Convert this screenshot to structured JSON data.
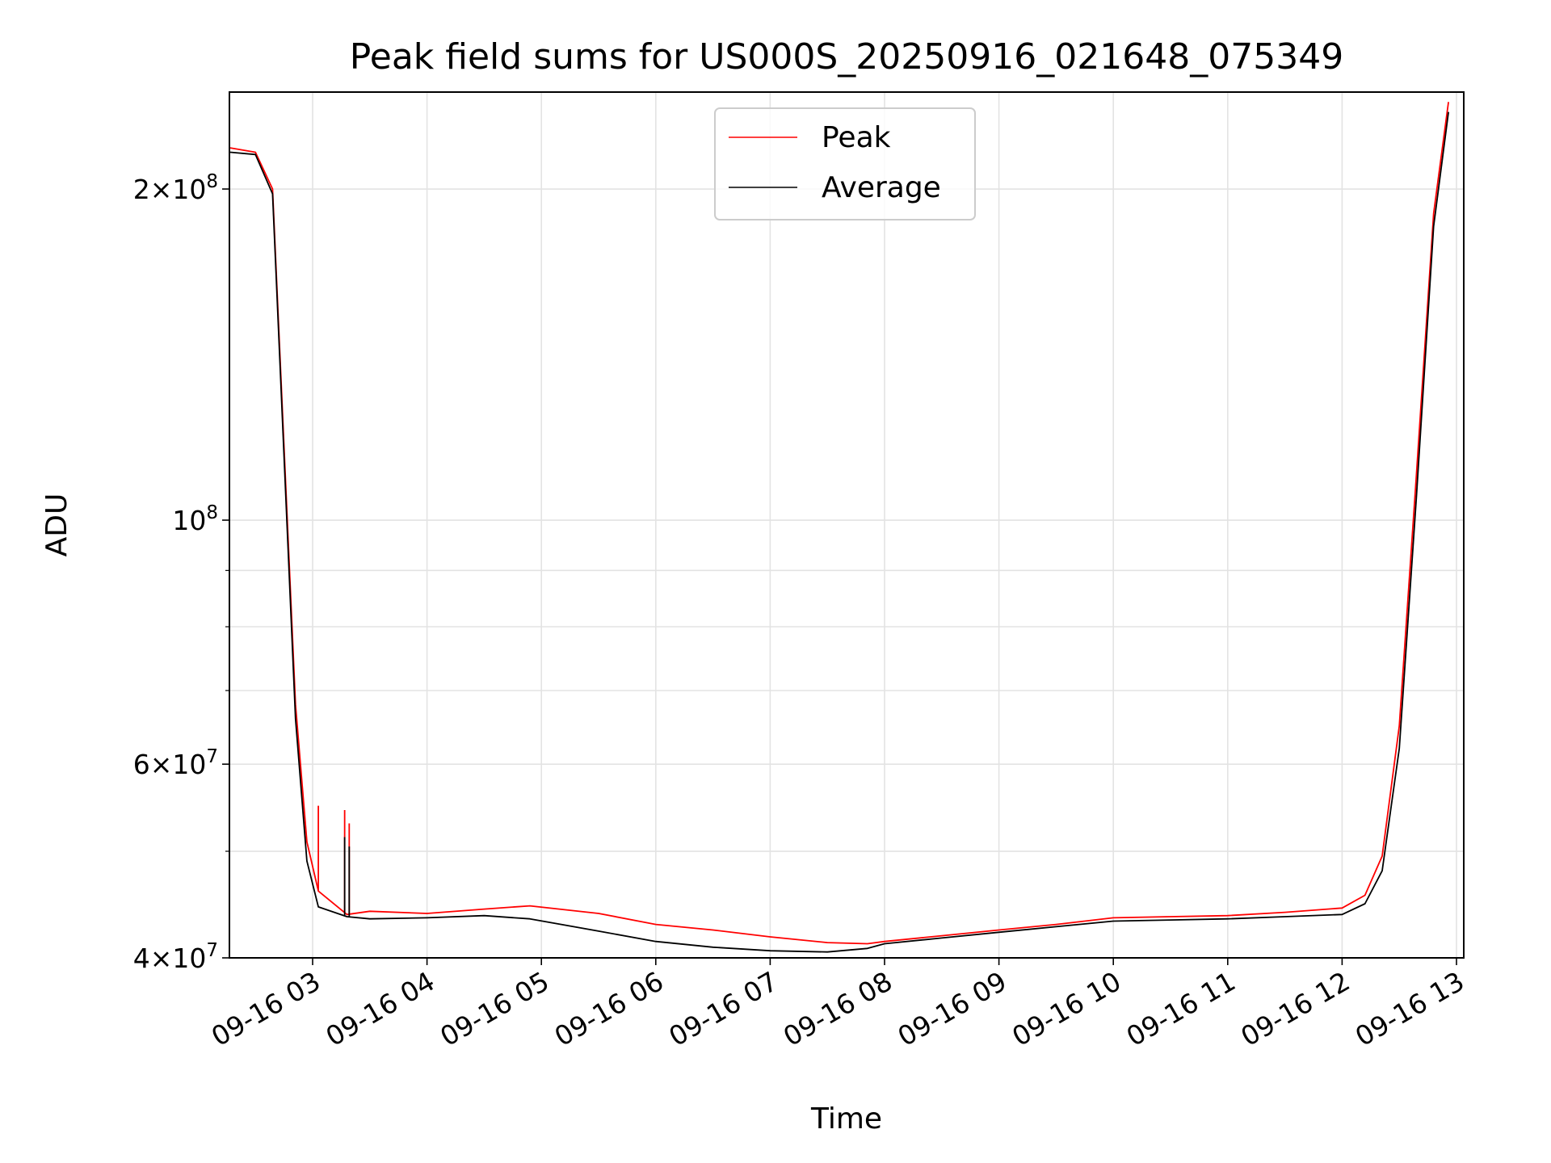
{
  "chart_data": {
    "type": "line",
    "title": "Peak field sums for US000S_20250916_021648_075349",
    "xlabel": "Time",
    "ylabel": "ADU",
    "yscale": "log",
    "xlim": [
      "2025-09-16T02:16:48",
      "2025-09-16T13:10:00"
    ],
    "ylim": [
      40000000,
      245000000
    ],
    "grid": true,
    "legend_position": "upper center",
    "x_tick_labels": [
      "09-16 03",
      "09-16 04",
      "09-16 05",
      "09-16 06",
      "09-16 07",
      "09-16 08",
      "09-16 09",
      "09-16 10",
      "09-16 11",
      "09-16 12",
      "09-16 13"
    ],
    "x_tick_hours": [
      3,
      4,
      5,
      6,
      7,
      8,
      9,
      10,
      11,
      12,
      13
    ],
    "y_major_ticks": [
      {
        "value": 40000000,
        "mant": "4",
        "exp": "7"
      },
      {
        "value": 60000000,
        "mant": "6",
        "exp": "7"
      },
      {
        "value": 100000000,
        "mant": "",
        "exp": "8"
      },
      {
        "value": 200000000,
        "mant": "2",
        "exp": "8"
      }
    ],
    "y_minor_grid": [
      50000000,
      70000000,
      80000000,
      90000000
    ],
    "series": [
      {
        "name": "Peak",
        "color": "#ff0000",
        "x_hours": [
          2.28,
          2.5,
          2.65,
          2.85,
          2.95,
          3.05,
          3.3,
          3.5,
          4.0,
          4.5,
          4.9,
          5.5,
          6.0,
          6.5,
          7.0,
          7.5,
          7.85,
          8.0,
          8.5,
          9.0,
          9.5,
          10.0,
          10.5,
          11.0,
          11.5,
          12.0,
          12.2,
          12.35,
          12.5,
          12.65,
          12.8,
          12.93
        ],
        "values": [
          218000000,
          216000000,
          200000000,
          68000000,
          51000000,
          46000000,
          43800000,
          44100000,
          43900000,
          44300000,
          44600000,
          43900000,
          42900000,
          42400000,
          41800000,
          41300000,
          41200000,
          41400000,
          41900000,
          42400000,
          42900000,
          43500000,
          43600000,
          43700000,
          44000000,
          44400000,
          45600000,
          49500000,
          65000000,
          110000000,
          190000000,
          240000000
        ]
      },
      {
        "name": "Average",
        "color": "#000000",
        "x_hours": [
          2.28,
          2.5,
          2.65,
          2.85,
          2.95,
          3.05,
          3.3,
          3.5,
          4.0,
          4.5,
          4.9,
          5.5,
          6.0,
          6.5,
          7.0,
          7.5,
          7.85,
          8.0,
          8.5,
          9.0,
          9.5,
          10.0,
          10.5,
          11.0,
          11.5,
          12.0,
          12.2,
          12.35,
          12.5,
          12.65,
          12.8,
          12.93
        ],
        "values": [
          216000000,
          215000000,
          198000000,
          66000000,
          49000000,
          44500000,
          43600000,
          43400000,
          43500000,
          43700000,
          43400000,
          42300000,
          41400000,
          40900000,
          40600000,
          40500000,
          40800000,
          41200000,
          41700000,
          42200000,
          42700000,
          43200000,
          43300000,
          43400000,
          43600000,
          43800000,
          44800000,
          48000000,
          62000000,
          105000000,
          185000000,
          235000000
        ]
      }
    ],
    "spikes": {
      "Peak": [
        {
          "x": 3.05,
          "value": 55000000
        },
        {
          "x": 3.28,
          "value": 54500000
        },
        {
          "x": 3.32,
          "value": 53000000
        }
      ],
      "Average": [
        {
          "x": 3.28,
          "value": 51500000
        },
        {
          "x": 3.32,
          "value": 50500000
        }
      ]
    }
  }
}
